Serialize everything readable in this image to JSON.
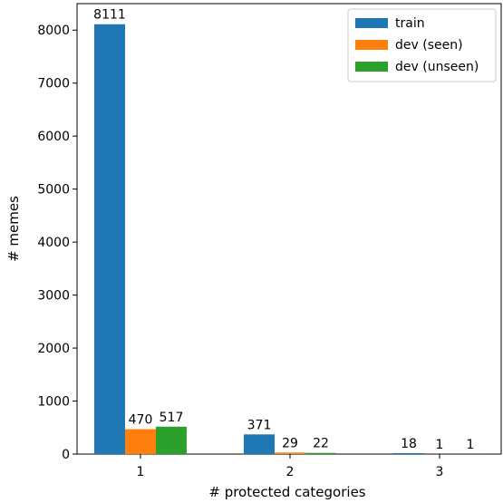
{
  "chart_data": {
    "type": "bar",
    "categories": [
      "1",
      "2",
      "3"
    ],
    "series": [
      {
        "name": "train",
        "color": "#1f77b4",
        "values": [
          8111,
          371,
          18
        ]
      },
      {
        "name": "dev (seen)",
        "color": "#ff7f0e",
        "values": [
          470,
          29,
          1
        ]
      },
      {
        "name": "dev (unseen)",
        "color": "#2ca02c",
        "values": [
          517,
          22,
          1
        ]
      }
    ],
    "xlabel": "# protected categories",
    "ylabel": "# memes",
    "ylim": [
      0,
      8500
    ],
    "yticks": [
      0,
      1000,
      2000,
      3000,
      4000,
      5000,
      6000,
      7000,
      8000
    ],
    "grid": false,
    "legend_position": "top-right"
  }
}
